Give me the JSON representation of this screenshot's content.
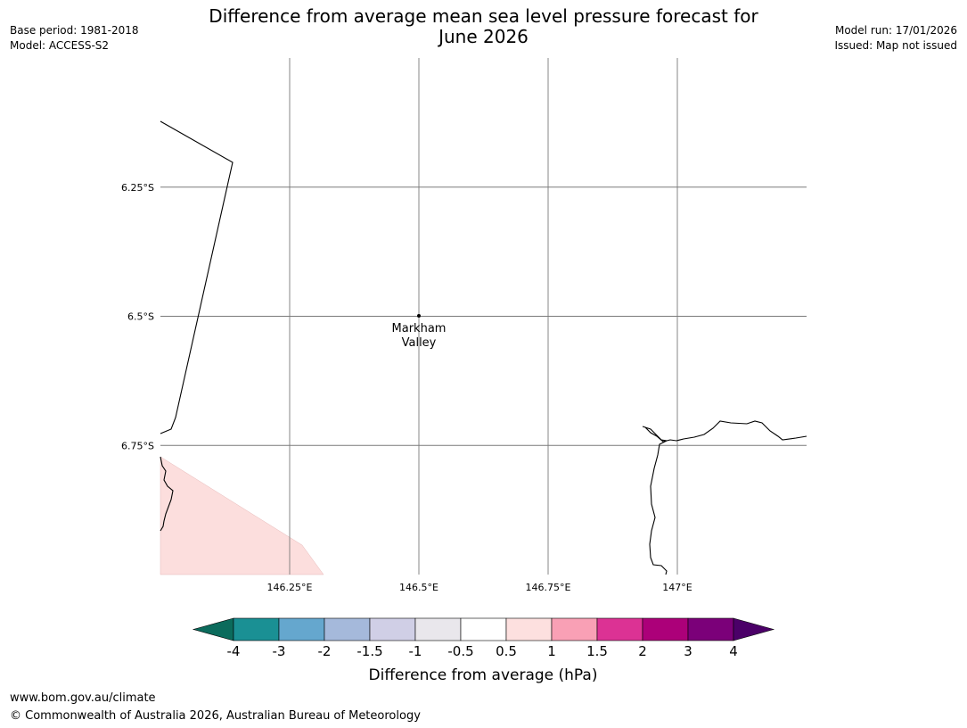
{
  "header": {
    "title_line1": "Difference from average mean sea level pressure forecast for",
    "title_line2": "June 2026",
    "base_period": "Base period: 1981-2018",
    "model": "Model: ACCESS-S2",
    "model_run": "Model run: 17/01/2026",
    "issued": "Issued: Map not issued"
  },
  "map": {
    "lon_range": [
      146.0,
      147.25
    ],
    "lat_range": [
      -6.0,
      -7.0
    ],
    "lon_ticks": [
      {
        "value": 146.25,
        "label": "146.25°E"
      },
      {
        "value": 146.5,
        "label": "146.5°E"
      },
      {
        "value": 146.75,
        "label": "146.75°E"
      },
      {
        "value": 147.0,
        "label": "147°E"
      }
    ],
    "lat_ticks": [
      {
        "value": -6.25,
        "label": "6.25°S"
      },
      {
        "value": -6.5,
        "label": "6.5°S"
      },
      {
        "value": -6.75,
        "label": "6.75°S"
      }
    ],
    "place": {
      "line1": "Markham",
      "line2": "Valley",
      "lon": 146.5,
      "lat": -6.5
    },
    "anomaly_region_color": "#fcdedd"
  },
  "colorbar": {
    "label": "Difference from average (hPa)",
    "ticks": [
      "-4",
      "-3",
      "-2",
      "-1.5",
      "-1",
      "-0.5",
      "0.5",
      "1",
      "1.5",
      "2",
      "3",
      "4"
    ],
    "colors": [
      "#1a9094",
      "#65a7ce",
      "#a5b9db",
      "#d0cfe6",
      "#e9e7ec",
      "#ffffff",
      "#fde0df",
      "#f9a0b5",
      "#dc3294",
      "#ac0079",
      "#7b0079"
    ],
    "under_color": "#0b6b5c",
    "over_color": "#4b0068"
  },
  "footer": {
    "url": "www.bom.gov.au/climate",
    "copyright": "© Commonwealth of Australia 2026, Australian Bureau of Meteorology"
  }
}
